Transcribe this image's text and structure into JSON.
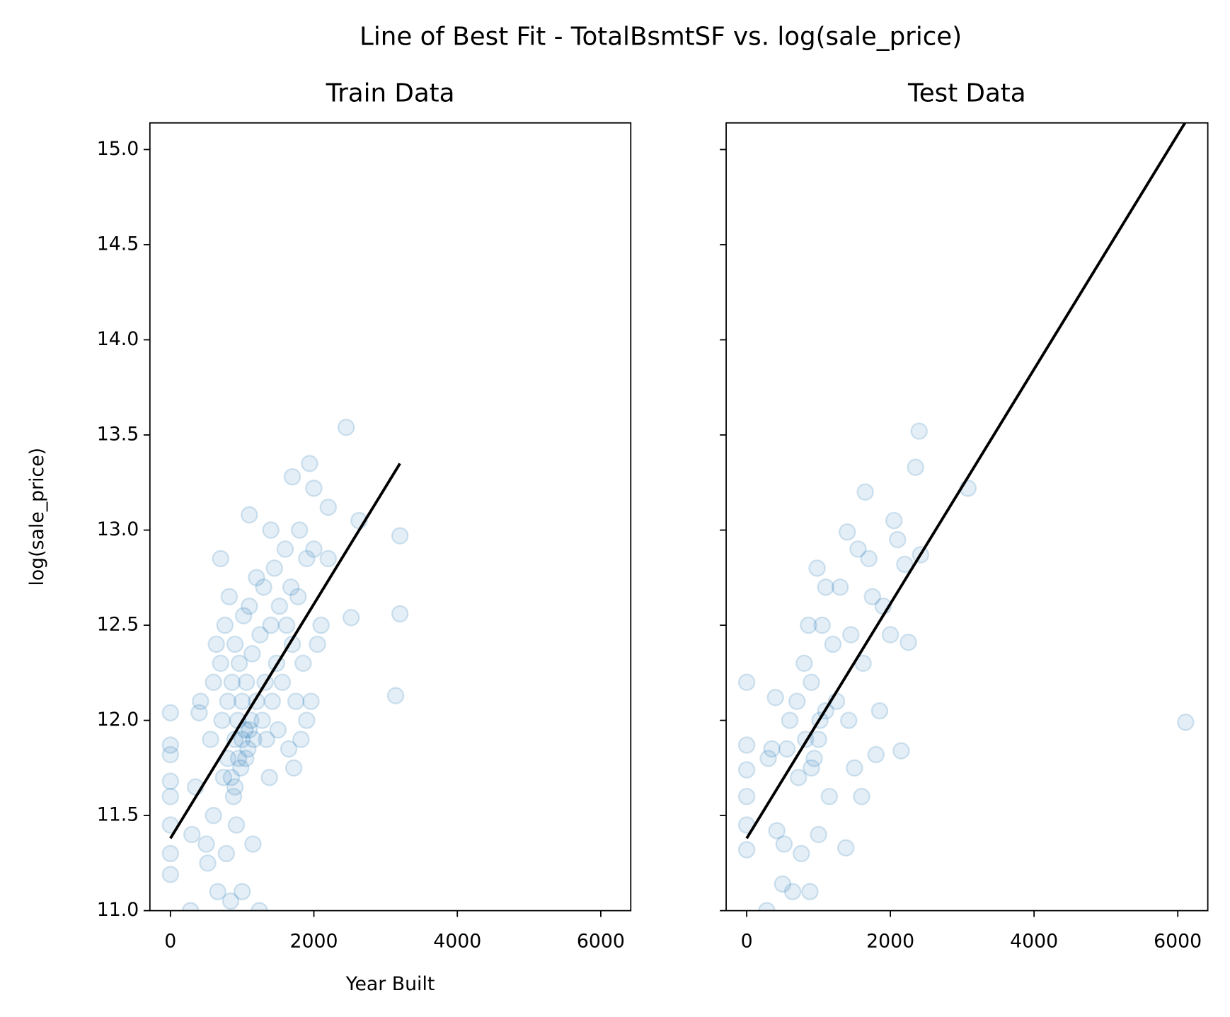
{
  "title": "Line of Best Fit - TotalBsmtSF vs. log(sale_price)",
  "chart_data": [
    {
      "type": "scatter",
      "title": "Train Data",
      "x_label": "Year Built",
      "y_label": "log(sale_price)",
      "xlim": [
        -286,
        6418
      ],
      "xticks": [
        0,
        2000,
        4000,
        6000
      ],
      "ylim": [
        11,
        15.14
      ],
      "yticks": [
        {
          "value": 11,
          "label": "11.0"
        },
        {
          "value": 11.5,
          "label": "11.5"
        },
        {
          "value": 12,
          "label": "12.0"
        },
        {
          "value": 12.5,
          "label": "12.5"
        },
        {
          "value": 13,
          "label": "13.0"
        },
        {
          "value": 13.5,
          "label": "13.5"
        },
        {
          "value": 14,
          "label": "14.0"
        },
        {
          "value": 14.5,
          "label": "14.5"
        },
        {
          "value": 15,
          "label": "15.0"
        }
      ],
      "series": [
        {
          "type": "scatter",
          "color": "#1f77b4",
          "alpha": 0.12,
          "x": [
            0,
            0,
            0,
            0,
            0,
            0,
            0,
            0,
            280,
            300,
            350,
            400,
            420,
            500,
            520,
            560,
            600,
            600,
            640,
            660,
            700,
            700,
            720,
            740,
            760,
            780,
            800,
            800,
            820,
            840,
            860,
            880,
            900,
            900,
            920,
            940,
            960,
            980,
            1000,
            1000,
            1020,
            1040,
            1060,
            1080,
            1100,
            1100,
            1120,
            1140,
            1150,
            1160,
            1200,
            1200,
            1240,
            1250,
            1280,
            1300,
            1320,
            1340,
            1380,
            1400,
            1400,
            1420,
            1450,
            1480,
            1500,
            1520,
            1560,
            1600,
            1620,
            1650,
            1680,
            1700,
            1700,
            1720,
            1750,
            1780,
            1800,
            1820,
            1850,
            1900,
            1900,
            1940,
            1960,
            2000,
            2000,
            2050,
            2100,
            2200,
            2200,
            2450,
            2520,
            2630,
            3140,
            3200,
            3200,
            850,
            950,
            1050,
            900,
            1000,
            1100
          ],
          "y": [
            12.04,
            11.87,
            11.82,
            11.68,
            11.6,
            11.45,
            11.3,
            11.19,
            11.0,
            11.4,
            11.65,
            12.04,
            12.1,
            11.35,
            11.25,
            11.9,
            12.2,
            11.5,
            12.4,
            11.1,
            12.85,
            12.3,
            12.0,
            11.7,
            12.5,
            11.3,
            12.1,
            11.8,
            12.65,
            11.05,
            12.2,
            11.6,
            12.4,
            11.9,
            11.45,
            12.0,
            12.3,
            11.75,
            12.1,
            11.1,
            12.55,
            11.95,
            12.2,
            11.85,
            13.08,
            12.6,
            12.0,
            12.35,
            11.35,
            11.9,
            12.75,
            12.1,
            11.0,
            12.45,
            12.0,
            12.7,
            12.2,
            11.9,
            11.7,
            13.0,
            12.5,
            12.1,
            12.8,
            12.3,
            11.95,
            12.6,
            12.2,
            12.9,
            12.5,
            11.85,
            12.7,
            13.28,
            12.4,
            11.75,
            12.1,
            12.65,
            13.0,
            11.9,
            12.3,
            12.85,
            12.0,
            13.35,
            12.1,
            13.22,
            12.9,
            12.4,
            12.5,
            13.12,
            12.85,
            13.54,
            12.54,
            13.05,
            12.13,
            12.56,
            12.97,
            11.7,
            11.8,
            11.8,
            11.65,
            11.9,
            11.95
          ]
        },
        {
          "type": "line",
          "color": "#000000",
          "x": [
            0,
            3200
          ],
          "y": [
            11.38,
            13.35
          ]
        }
      ]
    },
    {
      "type": "scatter",
      "title": "Test Data",
      "xlim": [
        -286,
        6418
      ],
      "xticks": [
        0,
        2000,
        4000,
        6000
      ],
      "ylim": [
        11,
        15.14
      ],
      "yticks": [
        11,
        11.5,
        12,
        12.5,
        13,
        13.5,
        14,
        14.5,
        15
      ],
      "series": [
        {
          "type": "scatter",
          "color": "#1f77b4",
          "alpha": 0.12,
          "x": [
            0,
            0,
            0,
            0,
            0,
            0,
            280,
            300,
            350,
            400,
            420,
            500,
            520,
            560,
            600,
            640,
            700,
            720,
            760,
            800,
            820,
            860,
            880,
            900,
            940,
            980,
            1000,
            1020,
            1050,
            1100,
            1150,
            1200,
            1250,
            1300,
            1380,
            1400,
            1420,
            1450,
            1500,
            1550,
            1600,
            1620,
            1650,
            1700,
            1750,
            1800,
            1850,
            1900,
            2000,
            2050,
            2100,
            2150,
            2200,
            2250,
            2350,
            2400,
            2420,
            3080,
            6110,
            900,
            1000,
            1100
          ],
          "y": [
            12.2,
            11.87,
            11.74,
            11.6,
            11.45,
            11.32,
            11.0,
            11.8,
            11.85,
            12.12,
            11.42,
            11.14,
            11.35,
            11.85,
            12.0,
            11.1,
            12.1,
            11.7,
            11.3,
            12.3,
            11.9,
            12.5,
            11.1,
            12.2,
            11.8,
            12.8,
            11.4,
            12.0,
            12.5,
            12.7,
            11.6,
            12.4,
            12.1,
            12.7,
            11.33,
            12.99,
            12.0,
            12.45,
            11.75,
            12.9,
            11.6,
            12.3,
            13.2,
            12.85,
            12.65,
            11.82,
            12.05,
            12.6,
            12.45,
            13.05,
            12.95,
            11.84,
            12.82,
            12.41,
            13.33,
            13.52,
            12.87,
            13.22,
            11.99,
            11.75,
            11.9,
            12.05
          ]
        },
        {
          "type": "line",
          "color": "#000000",
          "x": [
            0,
            6100
          ],
          "y": [
            11.38,
            15.14
          ]
        }
      ]
    }
  ]
}
